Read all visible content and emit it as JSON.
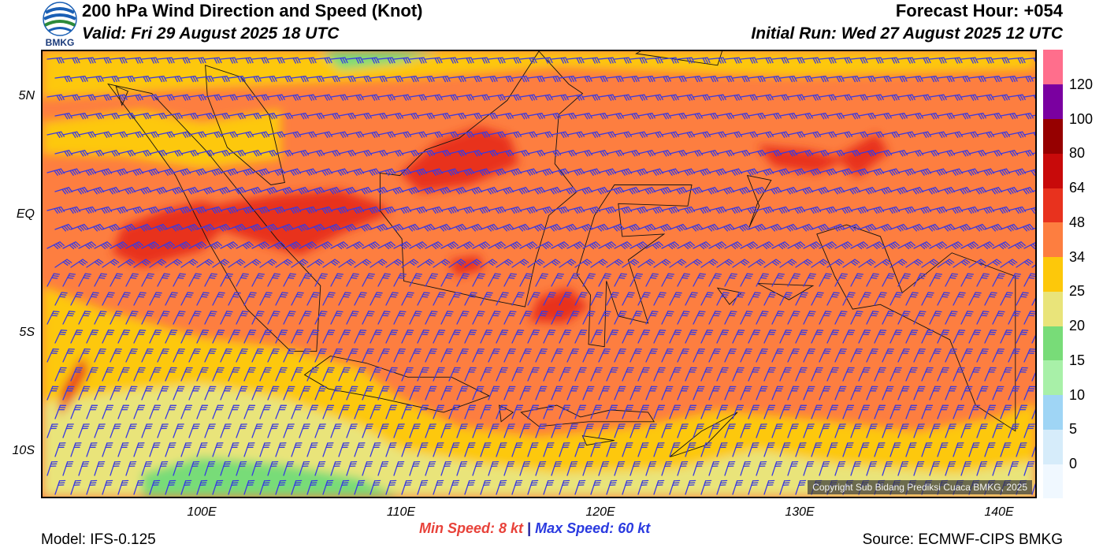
{
  "header": {
    "logo_text": "BMKG",
    "title": "200 hPa Wind Direction and Speed (Knot)",
    "valid": "Valid: Fri 29 August 2025 18 UTC",
    "forecast_hour": "Forecast Hour: +054",
    "initial_run": "Initial Run: Wed 27 August 2025 12 UTC"
  },
  "map": {
    "lon_range": [
      92,
      142
    ],
    "lat_range": [
      -12,
      7
    ],
    "x_ticks": [
      "100E",
      "110E",
      "120E",
      "130E",
      "140E"
    ],
    "y_ticks": [
      "5N",
      "EQ",
      "5S",
      "10S"
    ],
    "copyright": "Copyright Sub Bidang Prediksi Cuaca BMKG, 2025",
    "wind_barb_color": "#3a3ae0",
    "coastline_color": "#111111"
  },
  "colorbar": {
    "labels": [
      "0",
      "5",
      "10",
      "15",
      "20",
      "25",
      "34",
      "48",
      "64",
      "80",
      "100",
      "120"
    ],
    "colors": [
      "#f0f8ff",
      "#d6ecfa",
      "#9fd5f5",
      "#a8f0a8",
      "#78dc78",
      "#e9e47a",
      "#fdc80a",
      "#fd7e40",
      "#e8321e",
      "#c80a0a",
      "#960000",
      "#7a00a0",
      "#ff6e8c"
    ]
  },
  "footer": {
    "model": "Model: IFS-0.125",
    "min_label": "Min Speed:",
    "min_value": "8 kt",
    "separator": "|",
    "max_label": "Max Speed:",
    "max_value": "60 kt",
    "source": "Source: ECMWF-CIPS BMKG"
  }
}
